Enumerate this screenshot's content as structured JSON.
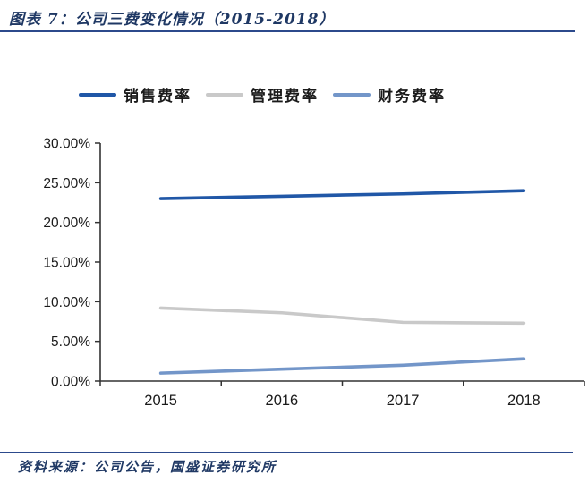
{
  "header": {
    "title": "图表 7：公司三费变化情况（2015-2018）"
  },
  "footer": {
    "source": "资料来源：公司公告，国盛证券研究所"
  },
  "colors": {
    "title_navy": "#1F3864",
    "rule_navy": "#2C4A8C",
    "axis": "#333333",
    "label_text": "#1A1A1A"
  },
  "chart_data": {
    "type": "line",
    "title": "公司三费变化情况（2015-2018）",
    "categories": [
      "2015",
      "2016",
      "2017",
      "2018"
    ],
    "series": [
      {
        "name": "销售费率",
        "color": "#2057A7",
        "values": [
          23.0,
          23.3,
          23.6,
          24.0
        ]
      },
      {
        "name": "管理费率",
        "color": "#C9C9C9",
        "values": [
          9.2,
          8.6,
          7.4,
          7.3
        ]
      },
      {
        "name": "财务费率",
        "color": "#7396C9",
        "values": [
          1.0,
          1.5,
          2.0,
          2.8
        ]
      }
    ],
    "xlabel": "",
    "ylabel": "",
    "ylim": [
      0,
      30
    ],
    "y_ticks": [
      0,
      5,
      10,
      15,
      20,
      25,
      30
    ],
    "y_tick_labels": [
      "0.00%",
      "5.00%",
      "10.00%",
      "15.00%",
      "20.00%",
      "25.00%",
      "30.00%"
    ],
    "grid": false,
    "legend_position": "top"
  }
}
